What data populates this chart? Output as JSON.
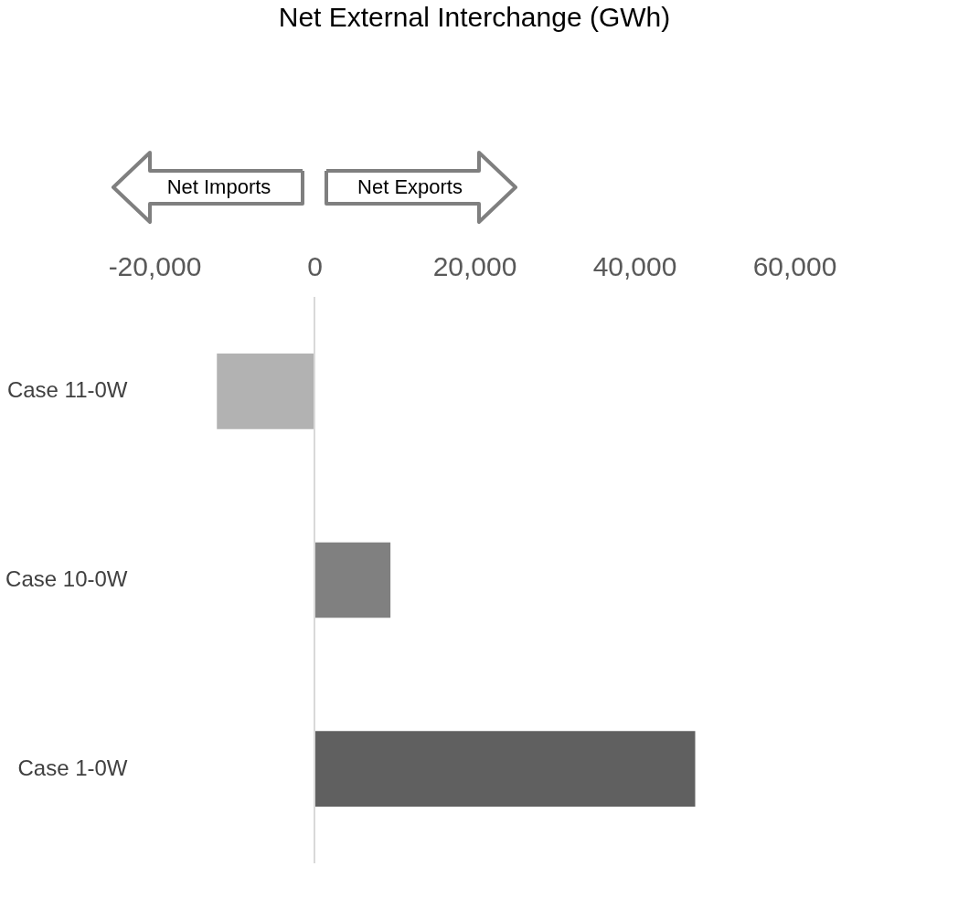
{
  "chart_data": {
    "type": "bar",
    "orientation": "horizontal",
    "title": "Net External Interchange (GWh)",
    "categories": [
      "Case 11-0W",
      "Case 10-0W",
      "Case 1-0W"
    ],
    "values": [
      -12200,
      9500,
      47600
    ],
    "colors": [
      "#b2b2b2",
      "#808080",
      "#606060"
    ],
    "xlim": [
      -20000,
      60000
    ],
    "xticks": [
      {
        "value": -20000,
        "label": "-20,000"
      },
      0,
      {
        "value": 20000,
        "label": "20,000"
      },
      {
        "value": 40000,
        "label": "40,000"
      },
      {
        "value": 60000,
        "label": "60,000"
      }
    ],
    "ref_lines": [
      {
        "axis": "x",
        "value": 0,
        "color": "#d9d9d9"
      }
    ],
    "annotations": [
      "Net Imports",
      "Net Exports"
    ],
    "grid": false
  }
}
